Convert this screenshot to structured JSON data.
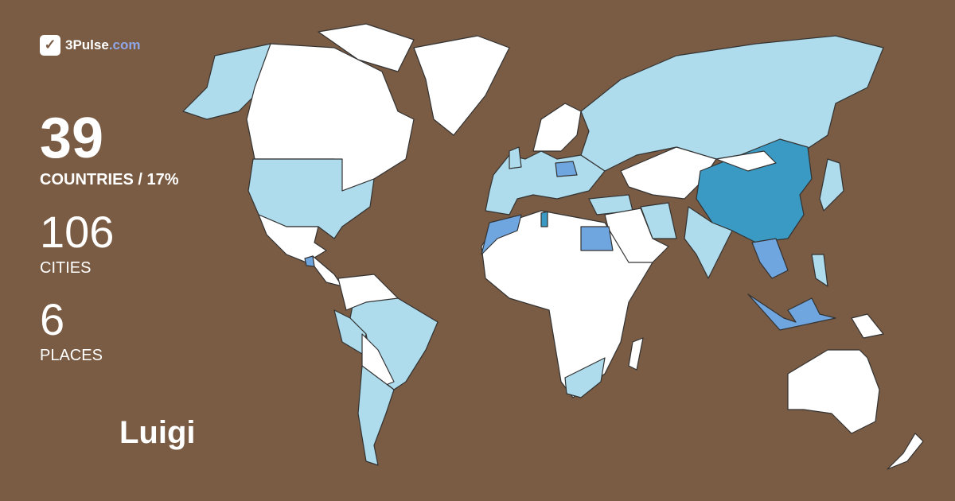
{
  "logo": {
    "brand": "3Pulse",
    "tld": ".com"
  },
  "stats": {
    "countries": "39",
    "countries_label": "COUNTRIES / 17%",
    "cities": "106",
    "cities_label": "CITIES",
    "places": "6",
    "places_label": "PLACES"
  },
  "user": {
    "name": "Luigi"
  },
  "colors": {
    "background": "#7a5b43",
    "unvisited": "#ffffff",
    "visited_light": "#aedcec",
    "visited_medium": "#6fa6e0",
    "visited_dark": "#3a9ac4"
  }
}
